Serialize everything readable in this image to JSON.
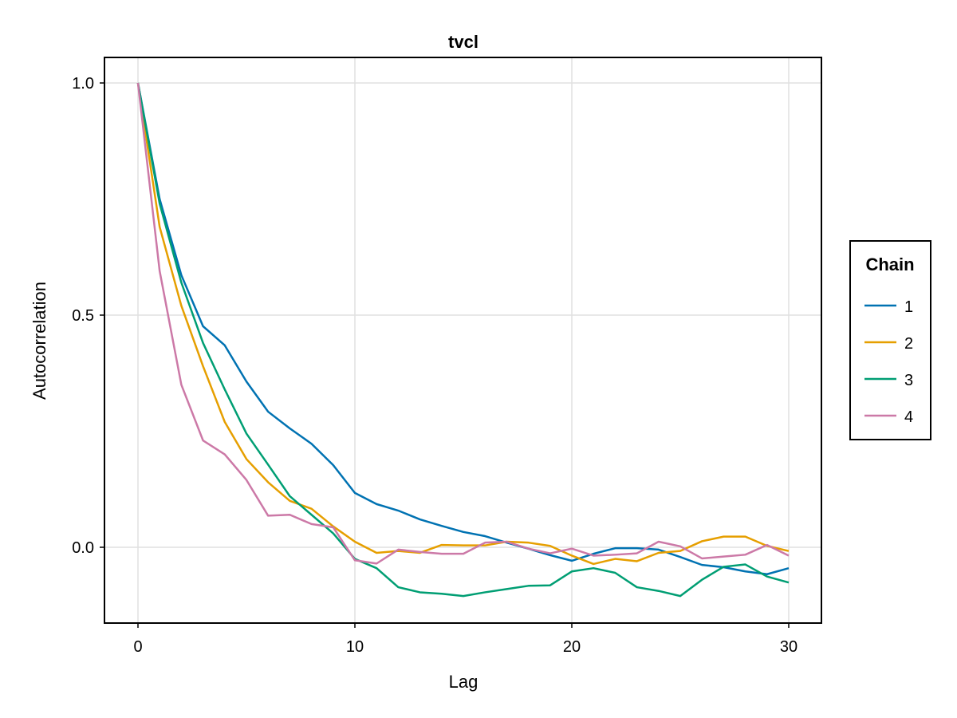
{
  "chart_data": {
    "type": "line",
    "title": "tvcl",
    "xlabel": "Lag",
    "ylabel": "Autocorrelation",
    "xlim": [
      -1.6,
      31.6
    ],
    "ylim": [
      -0.165,
      1.055
    ],
    "xticks": [
      0,
      10,
      20,
      30
    ],
    "xtick_labels": [
      "0",
      "10",
      "20",
      "30"
    ],
    "yticks": [
      0.0,
      0.5,
      1.0
    ],
    "ytick_labels": [
      "0.0",
      "0.5",
      "1.0"
    ],
    "grid": true,
    "legend": {
      "title": "Chain",
      "position": "right"
    },
    "x": [
      0,
      1,
      2,
      3,
      4,
      5,
      6,
      7,
      8,
      9,
      10,
      11,
      12,
      13,
      14,
      15,
      16,
      17,
      18,
      19,
      20,
      21,
      22,
      23,
      24,
      25,
      26,
      27,
      28,
      29,
      30
    ],
    "series": [
      {
        "name": "1",
        "color": "#0072b2",
        "values": [
          1.0,
          0.75,
          0.586,
          0.476,
          0.435,
          0.357,
          0.292,
          0.256,
          0.223,
          0.177,
          0.117,
          0.093,
          0.079,
          0.06,
          0.046,
          0.033,
          0.024,
          0.01,
          -0.003,
          -0.017,
          -0.029,
          -0.014,
          -0.002,
          -0.002,
          -0.005,
          -0.021,
          -0.038,
          -0.043,
          -0.052,
          -0.058,
          -0.045
        ]
      },
      {
        "name": "2",
        "color": "#e69f00",
        "values": [
          1.0,
          0.69,
          0.52,
          0.39,
          0.27,
          0.19,
          0.14,
          0.1,
          0.083,
          0.045,
          0.012,
          -0.012,
          -0.008,
          -0.012,
          0.005,
          0.004,
          0.004,
          0.012,
          0.01,
          0.003,
          -0.018,
          -0.036,
          -0.025,
          -0.03,
          -0.012,
          -0.008,
          0.013,
          0.023,
          0.023,
          0.003,
          -0.008
        ]
      },
      {
        "name": "3",
        "color": "#009e73",
        "values": [
          1.0,
          0.74,
          0.57,
          0.44,
          0.34,
          0.245,
          0.178,
          0.11,
          0.07,
          0.03,
          -0.025,
          -0.045,
          -0.086,
          -0.097,
          -0.1,
          -0.105,
          -0.097,
          -0.09,
          -0.083,
          -0.082,
          -0.052,
          -0.045,
          -0.055,
          -0.086,
          -0.094,
          -0.105,
          -0.07,
          -0.042,
          -0.037,
          -0.063,
          -0.076
        ]
      },
      {
        "name": "4",
        "color": "#cc79a7",
        "values": [
          1.0,
          0.595,
          0.35,
          0.23,
          0.2,
          0.145,
          0.068,
          0.07,
          0.05,
          0.043,
          -0.028,
          -0.035,
          -0.005,
          -0.01,
          -0.014,
          -0.014,
          0.01,
          0.012,
          -0.003,
          -0.013,
          -0.003,
          -0.018,
          -0.016,
          -0.013,
          0.012,
          0.002,
          -0.024,
          -0.02,
          -0.016,
          0.005,
          -0.018
        ]
      }
    ]
  }
}
